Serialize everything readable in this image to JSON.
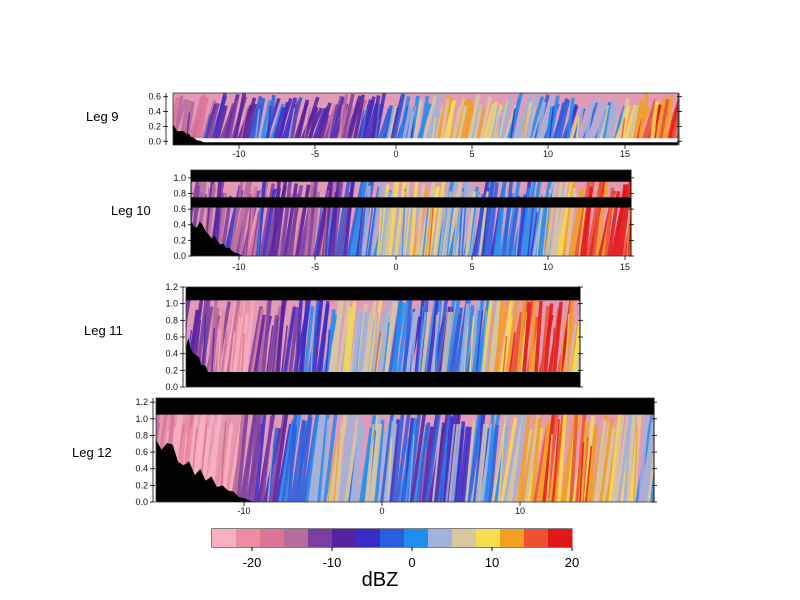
{
  "chart_data": [
    {
      "type": "heatmap",
      "name": "Leg 9",
      "xticks": [
        -10,
        -5,
        0,
        5,
        10,
        15
      ],
      "yticks": [
        "0.0",
        "0.2",
        "0.4",
        "0.6"
      ],
      "xlim": [
        -13.5,
        18
      ],
      "ylim": [
        -0.05,
        0.65
      ],
      "ground_top": 0.0,
      "echo_top": 0.65
    },
    {
      "type": "heatmap",
      "name": "Leg 10",
      "xticks": [
        -10,
        -5,
        0,
        5,
        10,
        15
      ],
      "yticks": [
        "0.0",
        "0.2",
        "0.4",
        "0.6",
        "0.8",
        "1.0"
      ],
      "xlim": [
        -13,
        15.3
      ],
      "ylim": [
        0,
        1.1
      ],
      "band_gap": [
        0.62,
        0.75
      ],
      "echo_top": 0.95
    },
    {
      "type": "heatmap",
      "name": "Leg 11",
      "xticks": [],
      "yticks": [
        "0.0",
        "0.2",
        "0.4",
        "0.6",
        "0.8",
        "1.0",
        "1.2"
      ],
      "ylim": [
        0,
        1.2
      ],
      "ground_top": 0.18,
      "echo_top": 1.04
    },
    {
      "type": "heatmap",
      "name": "Leg 12",
      "xticks": [
        -10,
        0,
        10
      ],
      "yticks": [
        "0.0",
        "0.2",
        "0.4",
        "0.6",
        "0.8",
        "1.0",
        "1.2"
      ],
      "xlim": [
        -17,
        19
      ],
      "ylim": [
        0,
        1.25
      ],
      "echo_top": 1.05
    }
  ],
  "colorbar": {
    "title": "dBZ",
    "tick_labels": [
      "-20",
      "-10",
      "0",
      "10",
      "20"
    ],
    "tick_values": [
      -20,
      -10,
      0,
      10,
      20
    ],
    "range": [
      -25,
      20
    ],
    "colors": [
      "#f7b1c0",
      "#ee8da0",
      "#dd7498",
      "#b86c9e",
      "#7b3fa0",
      "#5522a0",
      "#3a2cc8",
      "#2a5ee0",
      "#1e8ef2",
      "#9fb3dc",
      "#d8c8a0",
      "#f6de50",
      "#f2a020",
      "#ee5030",
      "#e21818"
    ]
  }
}
